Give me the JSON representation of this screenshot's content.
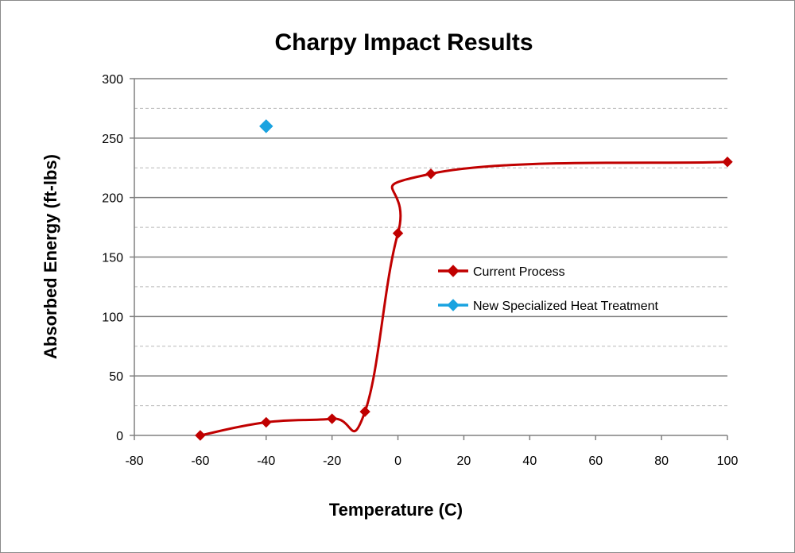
{
  "chart_data": {
    "type": "scatter",
    "title": "Charpy Impact Results",
    "xlabel": "Temperature (C)",
    "ylabel": "Absorbed Energy (ft-lbs)",
    "xlim": [
      -80,
      100
    ],
    "ylim": [
      0,
      300
    ],
    "x_ticks": [
      -80,
      -60,
      -40,
      -20,
      0,
      20,
      40,
      60,
      80,
      100
    ],
    "y_ticks": [
      0,
      50,
      100,
      150,
      200,
      250,
      300
    ],
    "major_grid": true,
    "minor_grid": true,
    "legend_position": "right-center",
    "series": [
      {
        "name": "Current Process",
        "color": "#c00000",
        "marker": "diamond",
        "line": "smooth",
        "points": [
          {
            "x": -60,
            "y": 0
          },
          {
            "x": -40,
            "y": 11
          },
          {
            "x": -20,
            "y": 14
          },
          {
            "x": -10,
            "y": 20
          },
          {
            "x": 0,
            "y": 170
          },
          {
            "x": 10,
            "y": 220
          },
          {
            "x": 100,
            "y": 230
          }
        ]
      },
      {
        "name": "New Specialized Heat Treatment",
        "color": "#1aa3e0",
        "marker": "diamond",
        "line": "none",
        "points": [
          {
            "x": -40,
            "y": 260
          }
        ]
      }
    ]
  }
}
